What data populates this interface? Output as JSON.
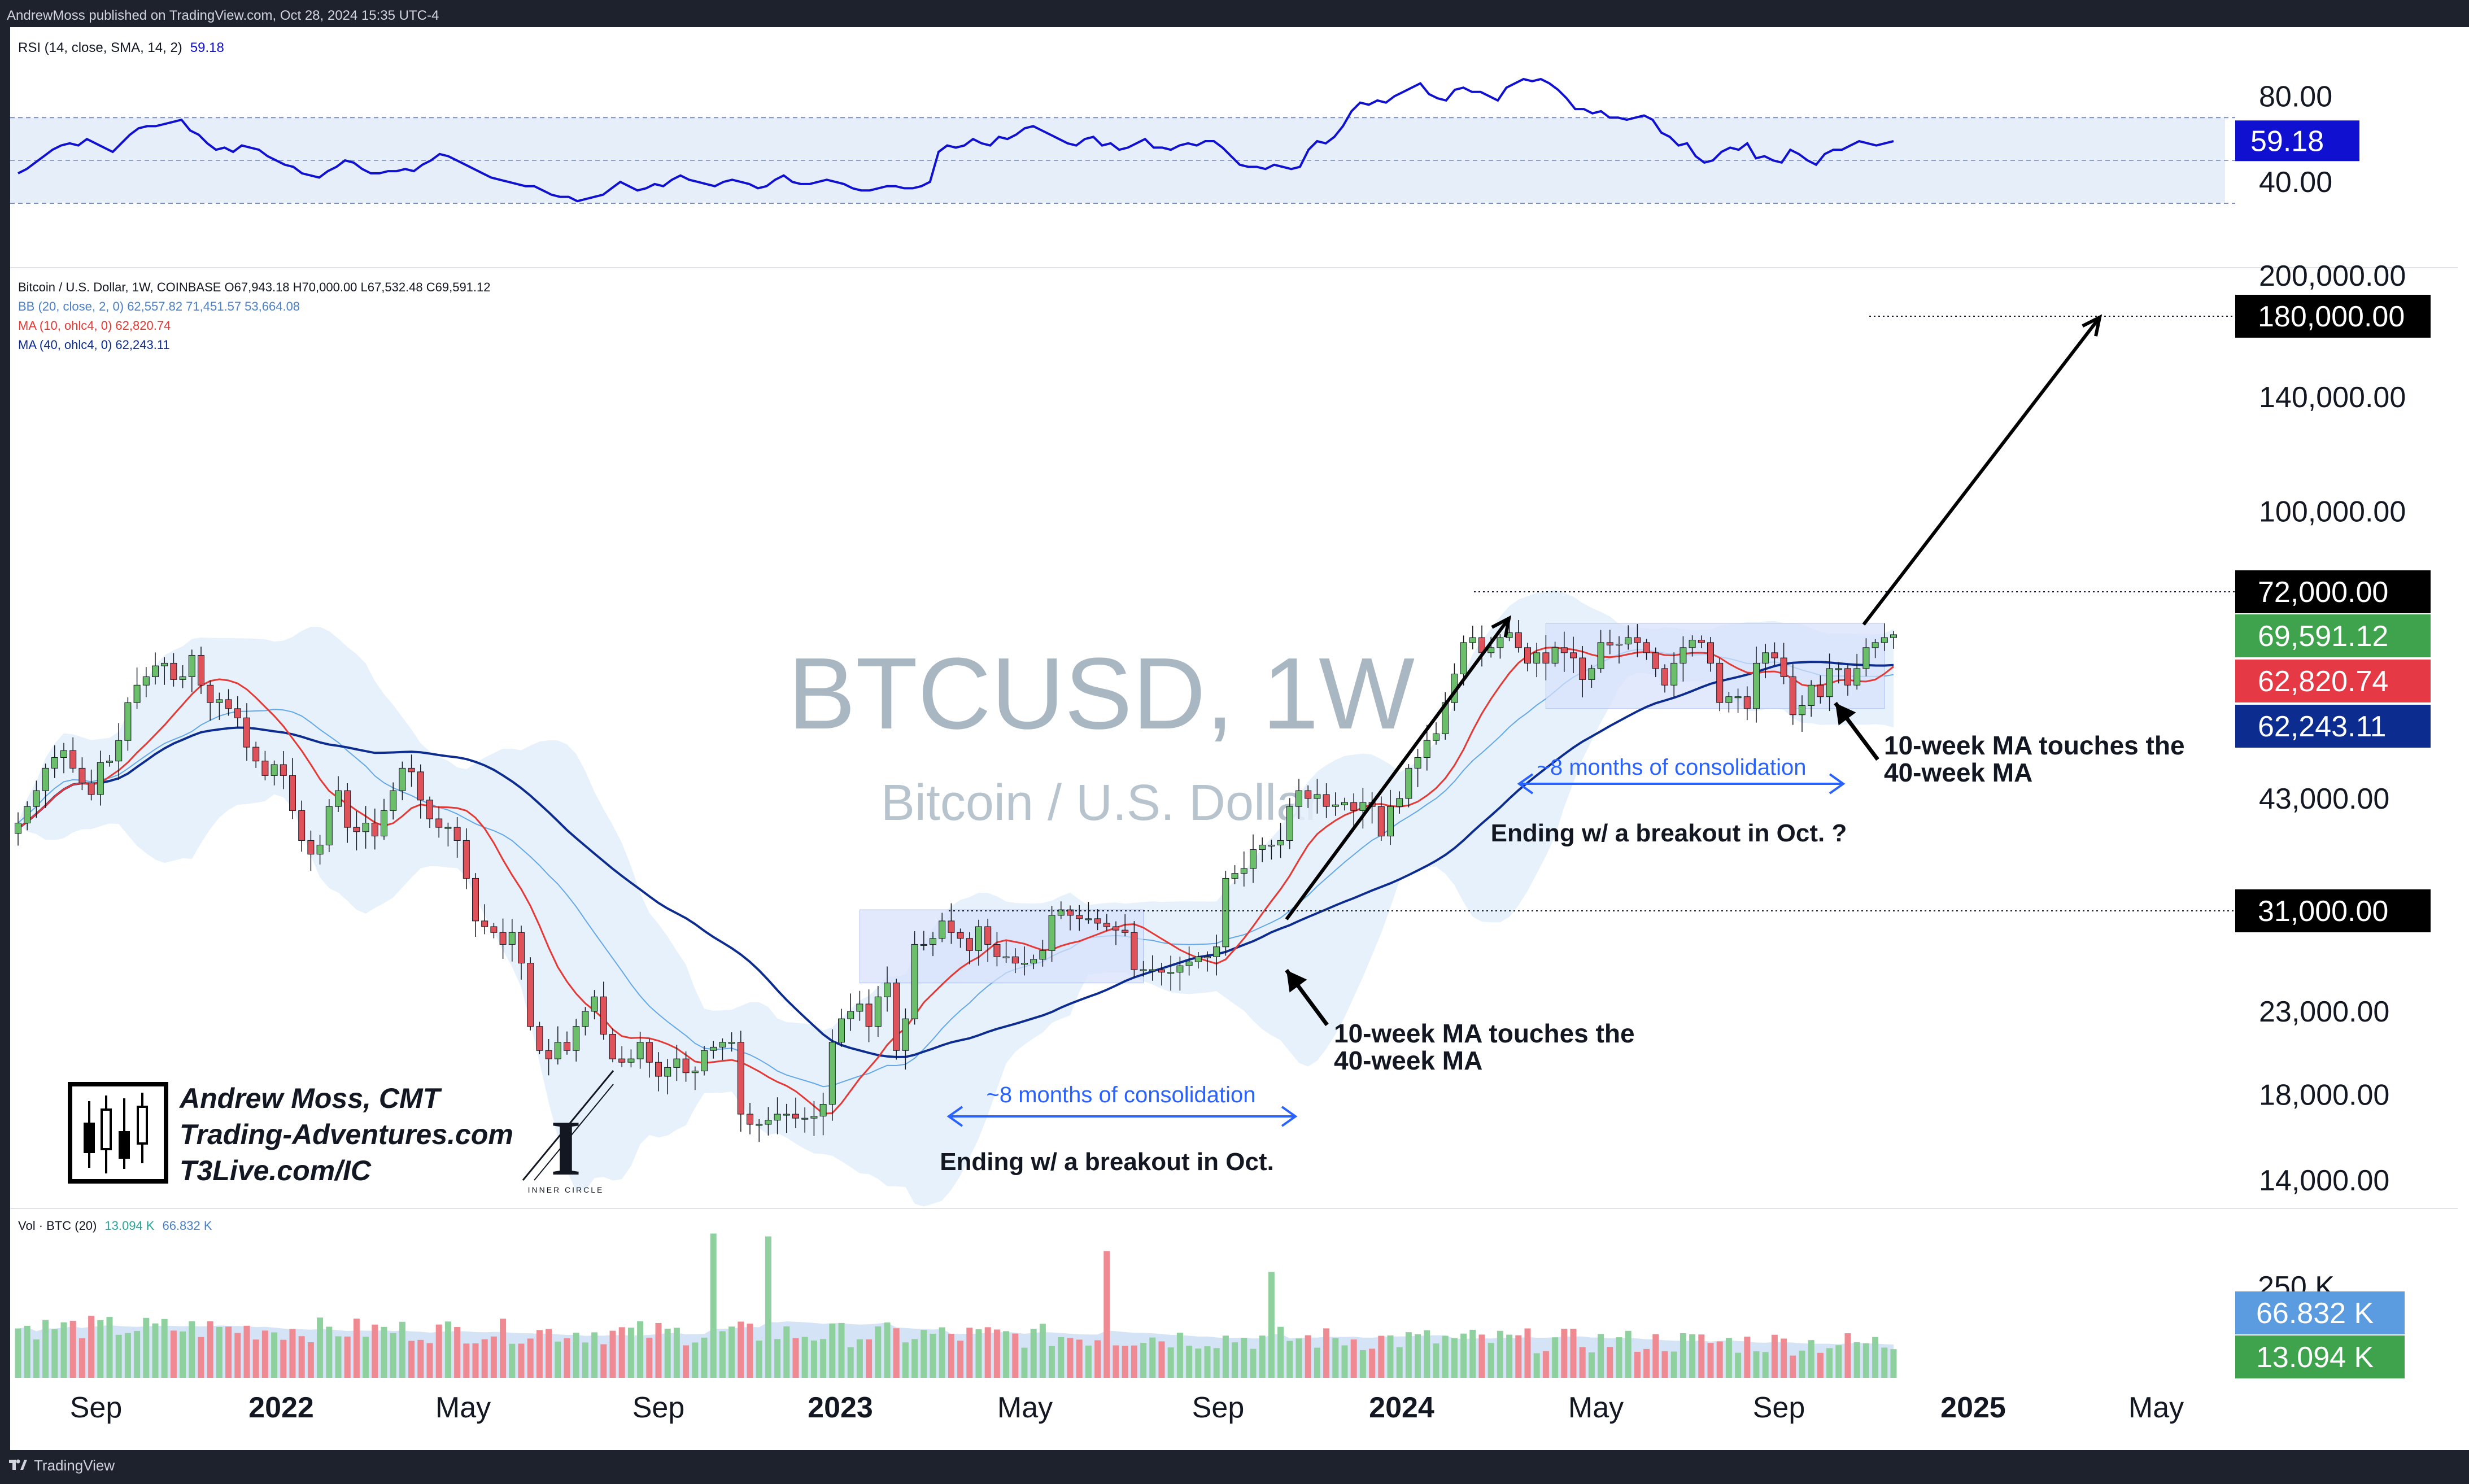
{
  "header": {
    "published": "AndrewMoss published on TradingView.com, Oct 28, 2024 15:35 UTC-4"
  },
  "footer": {
    "brand": "TradingView",
    "logo_icon": "tradingview-logo-icon"
  },
  "colors": {
    "up": "#26a69a",
    "candle_up": "#6bbf6b",
    "candle_down": "#e0525a",
    "ma10": "#e53935",
    "ma40": "#0d2c8f",
    "bb": "#64a8e8",
    "rsi": "#1010d0"
  },
  "chart_data": [
    {
      "type": "line",
      "panel": "rsi",
      "legend": {
        "title": "RSI (14, close, SMA, 14, 2)",
        "value": "59.18"
      },
      "y_ticks": [
        "80.00",
        "40.00"
      ],
      "price_label": "59.18",
      "bands": [
        70,
        30
      ],
      "values": [
        44,
        46,
        49,
        52,
        55,
        57,
        58,
        57,
        60,
        58,
        56,
        54,
        58,
        62,
        65,
        66,
        66,
        67,
        68,
        69,
        64,
        62,
        58,
        55,
        56,
        54,
        57,
        56,
        55,
        52,
        50,
        48,
        47,
        44,
        43,
        42,
        45,
        47,
        50,
        49,
        46,
        44,
        44,
        45,
        45,
        46,
        45,
        48,
        50,
        53,
        52,
        50,
        48,
        46,
        44,
        42,
        41,
        40,
        39,
        38,
        38,
        36,
        34,
        33,
        33,
        31,
        32,
        33,
        34,
        37,
        40,
        38,
        36,
        37,
        39,
        38,
        41,
        43,
        41,
        40,
        39,
        38,
        40,
        41,
        40,
        39,
        37,
        38,
        41,
        43,
        40,
        39,
        39,
        40,
        41,
        40,
        39,
        37,
        36,
        36,
        37,
        38,
        38,
        37,
        37,
        38,
        40,
        54,
        57,
        56,
        57,
        60,
        58,
        57,
        61,
        60,
        62,
        65,
        66,
        64,
        62,
        60,
        58,
        57,
        60,
        61,
        57,
        58,
        55,
        56,
        58,
        60,
        56,
        56,
        55,
        57,
        58,
        57,
        59,
        59,
        56,
        52,
        48,
        47,
        47,
        46,
        48,
        47,
        46,
        47,
        55,
        59,
        58,
        61,
        66,
        73,
        77,
        76,
        78,
        77,
        80,
        82,
        84,
        86,
        81,
        79,
        78,
        83,
        84,
        82,
        82,
        80,
        78,
        84,
        86,
        88,
        87,
        88,
        86,
        83,
        79,
        74,
        74,
        72,
        73,
        70,
        70,
        69,
        70,
        71,
        69,
        63,
        61,
        57,
        58,
        52,
        49,
        50,
        54,
        56,
        55,
        58,
        51,
        52,
        50,
        49,
        55,
        53,
        50,
        48,
        53,
        55,
        55,
        57,
        59,
        58,
        57,
        58,
        59
      ]
    },
    {
      "type": "candlestick",
      "panel": "price",
      "title": "BTCUSD, 1W",
      "subtitle": "Bitcoin / U.S. Dollar",
      "legend": [
        "Bitcoin / U.S. Dollar, 1W, COINBASE  O67,943.18  H70,000.00  L67,532.48  C69,591.12",
        "BB (20, close, 2, 0)  62,557.82  71,451.57  53,664.08",
        "MA (10, ohlc4, 0)  62,820.74",
        "MA (40, ohlc4, 0)  62,243.11"
      ],
      "scale": "log",
      "ylim": [
        12500,
        210000
      ],
      "y_ticks": [
        "200,000.00",
        "140,000.00",
        "100,000.00",
        "43,000.00",
        "23,000.00",
        "18,000.00",
        "14,000.00"
      ],
      "x_ticks": [
        "Sep",
        "2022",
        "May",
        "Sep",
        "2023",
        "May",
        "Sep",
        "2024",
        "May",
        "Sep",
        "2025",
        "May"
      ],
      "start": "2021-07-26",
      "close": [
        40000,
        42000,
        44000,
        47000,
        48500,
        49500,
        47000,
        45000,
        43500,
        47800,
        48000,
        51000,
        57000,
        60000,
        61500,
        63500,
        64000,
        61000,
        61500,
        65500,
        60000,
        57000,
        57500,
        56000,
        54500,
        50000,
        48000,
        46000,
        47500,
        46000,
        41500,
        38000,
        36500,
        37500,
        42000,
        44000,
        39500,
        39000,
        40000,
        38500,
        41500,
        44000,
        47000,
        46500,
        42800,
        40500,
        39500,
        39500,
        38000,
        34000,
        30000,
        29500,
        29000,
        28000,
        29000,
        26500,
        22000,
        20500,
        20000,
        21000,
        20500,
        22000,
        23000,
        24000,
        21500,
        20000,
        19800,
        20000,
        21000,
        19800,
        19000,
        19500,
        20000,
        19200,
        19300,
        20500,
        20700,
        21000,
        21000,
        17000,
        16500,
        16500,
        16700,
        17000,
        17000,
        16800,
        16800,
        16900,
        17500,
        21000,
        22500,
        23000,
        23500,
        22000,
        24000,
        25000,
        20500,
        22500,
        28000,
        28000,
        28500,
        30000,
        29000,
        28500,
        27500,
        29500,
        28000,
        27000,
        27000,
        26500,
        26500,
        26800,
        27500,
        30500,
        31000,
        30500,
        30200,
        30200,
        29800,
        29500,
        29200,
        29000,
        26000,
        26000,
        26000,
        25800,
        25800,
        26300,
        26600,
        27000,
        27000,
        27800,
        34000,
        34500,
        35000,
        37000,
        37500,
        37500,
        38000,
        42000,
        44000,
        43000,
        43500,
        42000,
        42200,
        42500,
        41500,
        42500,
        42000,
        38500,
        42000,
        43000,
        47000,
        48500,
        51000,
        52000,
        57000,
        62000,
        68000,
        69000,
        66000,
        67000,
        69000,
        70000,
        67000,
        64000,
        66000,
        64000,
        67000,
        66000,
        65000,
        61000,
        63000,
        68000,
        67500,
        67700,
        69000,
        68000,
        66000,
        63000,
        60000,
        64000,
        67000,
        68500,
        68000,
        64000,
        57000,
        58000,
        58000,
        56000,
        64000,
        66000,
        65000,
        61500,
        55000,
        56500,
        60000,
        58000,
        63000,
        63000,
        60000,
        63000,
        67000,
        68000,
        69000,
        69591
      ]
    },
    {
      "type": "bar",
      "panel": "volume",
      "legend": {
        "title": "Vol · BTC (20)",
        "value": "13.094 K",
        "ma": "66.832 K"
      },
      "y_ticks": [
        "250 K"
      ],
      "labels": [
        "66.832 K",
        "13.094 K"
      ],
      "ylim": [
        0,
        350
      ]
    }
  ],
  "price_labels": [
    {
      "text": "180,000.00",
      "price": 180000
    },
    {
      "text": "72,000.00",
      "price": 72000
    },
    {
      "text": "69,591.12",
      "price": 69591
    },
    {
      "text": "62,820.74",
      "price": 62820
    },
    {
      "text": "62,243.11",
      "price": 62243
    },
    {
      "text": "31,000.00",
      "price": 31000
    }
  ],
  "annotations": {
    "consolidation": "~8 months of consolidation",
    "breakout1": "Ending w/ a breakout in Oct.",
    "breakout2": "Ending w/ a breakout in Oct. ?",
    "ma_touch_line1": "10-week MA touches the",
    "ma_touch_line2": "40-week MA"
  },
  "branding": {
    "line1": "Andrew Moss, CMT",
    "line2": "Trading-Adventures.com",
    "line3": "T3Live.com/IC",
    "inner_circle": "INNER CIRCLE"
  }
}
